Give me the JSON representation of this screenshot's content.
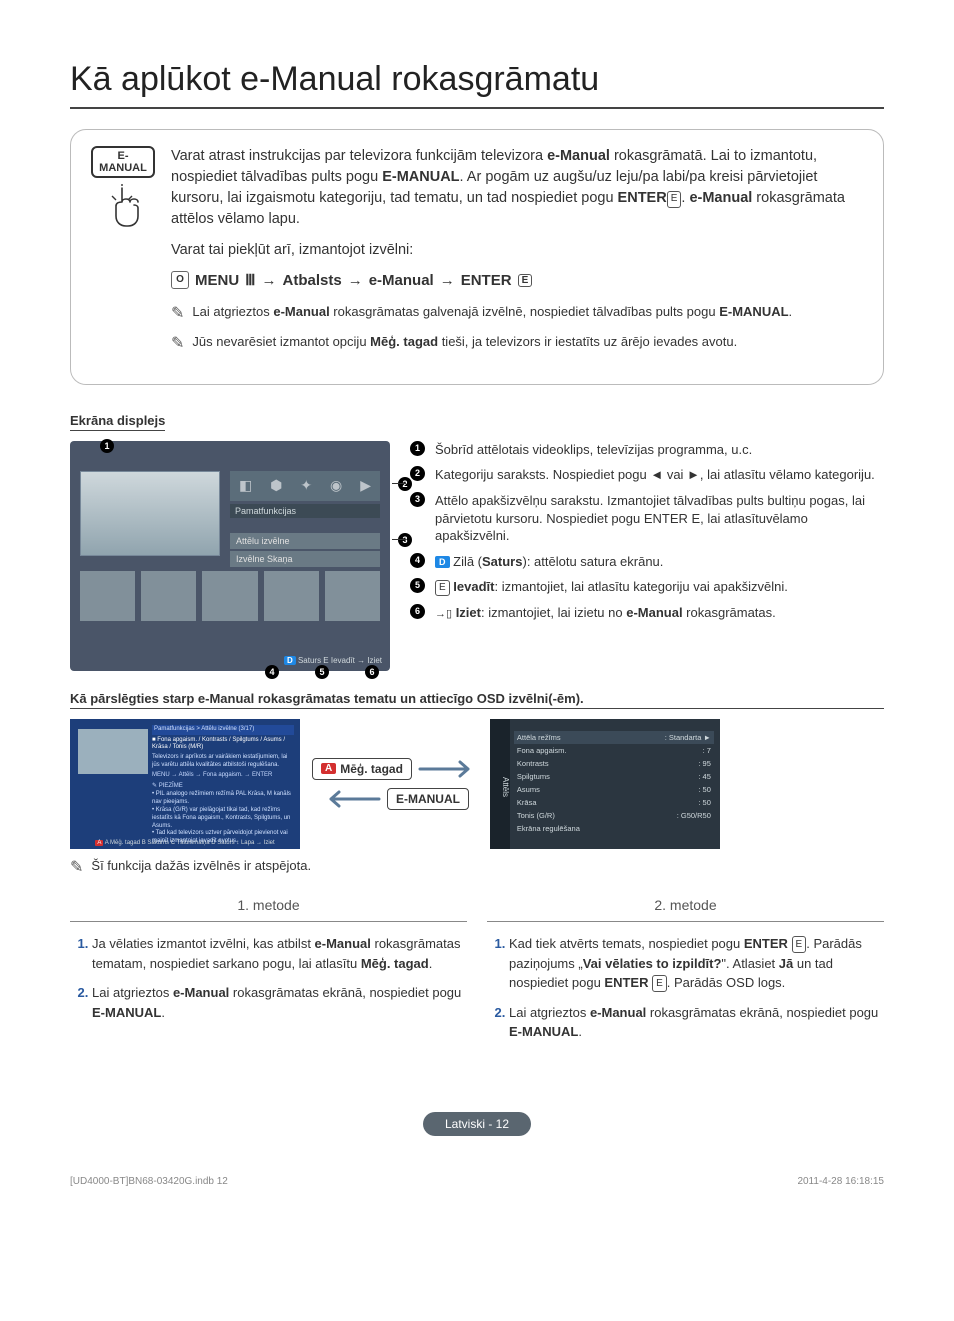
{
  "title": "Kā aplūkot e-Manual rokasgrāmatu",
  "badge": "E-MANUAL",
  "intro": {
    "p1a": "Varat atrast instrukcijas par televizora funkcijām televizora ",
    "p1b": "e-Manual",
    "p1c": " rokasgrāmatā. Lai to izmantotu, nospiediet tālvadības pults pogu ",
    "p1d": "E-MANUAL",
    "p1e": ". Ar pogām uz augšu/uz leju/pa labi/pa kreisi pārvietojiet kursoru, lai izgaismotu kategoriju, tad tematu, un tad nospiediet pogu ",
    "p1f": "ENTER",
    "p1g": ". ",
    "p1h": "e-Manual",
    "p1i": " rokasgrāmata attēlos vēlamo lapu.",
    "p2": "Varat tai piekļūt arī, izmantojot izvēlni:"
  },
  "nav": {
    "menu": "MENU",
    "a": "Atbalsts",
    "b": "e-Manual",
    "enter": "ENTER"
  },
  "notes": {
    "n1a": "Lai atgrieztos ",
    "n1b": "e-Manual",
    "n1c": " rokasgrāmatas galvenajā izvēlnē, nospiediet tālvadības pults pogu ",
    "n1d": "E-MANUAL",
    "n1e": ".",
    "n2a": "Jūs nevarēsiet izmantot opciju ",
    "n2b": "Mēģ. tagad",
    "n2c": " tieši, ja televizors ir iestatīts uz ārējo ievades avotu."
  },
  "display_label": "Ekrāna displejs",
  "tv": {
    "cat_label": "Pamatfunkcijas",
    "sub1": "Attēlu izvēlne",
    "sub2": "Izvēlne Skaņa",
    "footer_d": "D",
    "footer_txt": "Saturs   E Ievadīt   → Iziet"
  },
  "legend": {
    "l1": "Šobrīd attēlotais videoklips, televīzijas programma, u.c.",
    "l2": "Kategoriju saraksts. Nospiediet pogu ◄ vai ►, lai atlasītu vēlamo kategoriju.",
    "l3": "Attēlo apakšizvēlņu sarakstu. Izmantojiet tālvadības pults bultiņu pogas, lai pārvietotu kursoru. Nospiediet pogu ENTER E, lai atlasītuvēlamo apakšizvēlni.",
    "l4a": "Zilā (",
    "l4b": "Saturs",
    "l4c": "): attēlotu satura ekrānu.",
    "l5a": "Ievadīt",
    "l5b": ": izmantojiet, lai atlasītu kategoriju vai apakšizvēlni.",
    "l6a": "Iziet",
    "l6b": ": izmantojiet, lai izietu no ",
    "l6c": "e-Manual",
    "l6d": " rokasgrāmatas."
  },
  "switch_label": "Kā pārslēgties starp e-Manual rokasgrāmatas tematu un attiecīgo OSD izvēlni(-ēm).",
  "switch_panel": {
    "header": "Pamatfunkcijas > Attēlu izvēlne (3/17)",
    "bullet_title": "■ Fona apgaism. / Kontrasts / Spilgtums / Asums / Krāsa / Tonis (M/R)",
    "bullet_body": "Televizors ir aprīkots ar vairākiem iestatījumiem, lai jūs varētu attēla kvalitātes atbilstoši regulēšana.",
    "bullet_path": "  MENU → Attēls → Fona apgaism. → ENTER",
    "note_label": "PIEZĪME",
    "note_line1": "• PIL analogo režīmiem režīmā PAL Krāsa, M kanāls nav pieejams.",
    "note_line2": "• Krāsa (G/R) var pielāgojat tikai tad, kad režīms iestatīts kā Fona apgaism., Kontrasts, Spilgtums, un Asums.",
    "note_line3": "• Tad kad televizors uztver pārveidojot pievienot vai mainīt izmantojot ievadīt avotus.",
    "footer": "A Mēģ. tagad  B Sākums  C Tālummaiņa  D Saturs  ↕ Lapa  → Iziet"
  },
  "pill_a": "A",
  "pill_txt": "Mēģ. tagad",
  "pill_em": "E-MANUAL",
  "osd": {
    "side": "Attēls",
    "rows": [
      {
        "k": "Attēla režīms",
        "v": ": Standarta",
        "hl": true,
        "arrow": "►"
      },
      {
        "k": "Fona apgaism.",
        "v": ": 7"
      },
      {
        "k": "Kontrasts",
        "v": ": 95"
      },
      {
        "k": "Spilgtums",
        "v": ": 45"
      },
      {
        "k": "Asums",
        "v": ": 50"
      },
      {
        "k": "Krāsa",
        "v": ": 50"
      },
      {
        "k": "Tonis (G/R)",
        "v": ": G50/R50"
      },
      {
        "k": "Ekrāna regulēšana",
        "v": ""
      }
    ]
  },
  "note3": "Šī funkcija dažās izvēlnēs ir atspējota.",
  "methods": {
    "h1": "1. metode",
    "h2": "2. metode",
    "m1_1a": "Ja vēlaties izmantot izvēlni, kas atbilst ",
    "m1_1b": "e-Manual",
    "m1_1c": " rokasgrāmatas tematam, nospiediet sarkano pogu, lai atlasītu ",
    "m1_1d": "Mēģ. tagad",
    "m1_1e": ".",
    "m1_2a": "Lai atgrieztos ",
    "m1_2b": "e-Manual",
    "m1_2c": " rokasgrāmatas ekrānā, nospiediet pogu ",
    "m1_2d": "E-MANUAL",
    "m1_2e": ".",
    "m2_1a": "Kad tiek atvērts temats, nospiediet pogu ",
    "m2_1b": "ENTER",
    "m2_1c": ". Parādās paziņojums „",
    "m2_1d": "Vai vēlaties to izpildīt?",
    "m2_1e": "\". Atlasiet ",
    "m2_1f": "Jā",
    "m2_1g": " un tad nospiediet pogu ",
    "m2_1h": "ENTER",
    "m2_1i": ". Parādās OSD logs.",
    "m2_2a": "Lai atgrieztos ",
    "m2_2b": "e-Manual",
    "m2_2c": " rokasgrāmatas ekrānā, nospiediet pogu ",
    "m2_2d": "E-MANUAL",
    "m2_2e": "."
  },
  "footer": {
    "lang": "Latviski - 12",
    "doc": "[UD4000-BT]BN68-03420G.indb   12",
    "ts": "2011-4-28   16:18:15"
  }
}
